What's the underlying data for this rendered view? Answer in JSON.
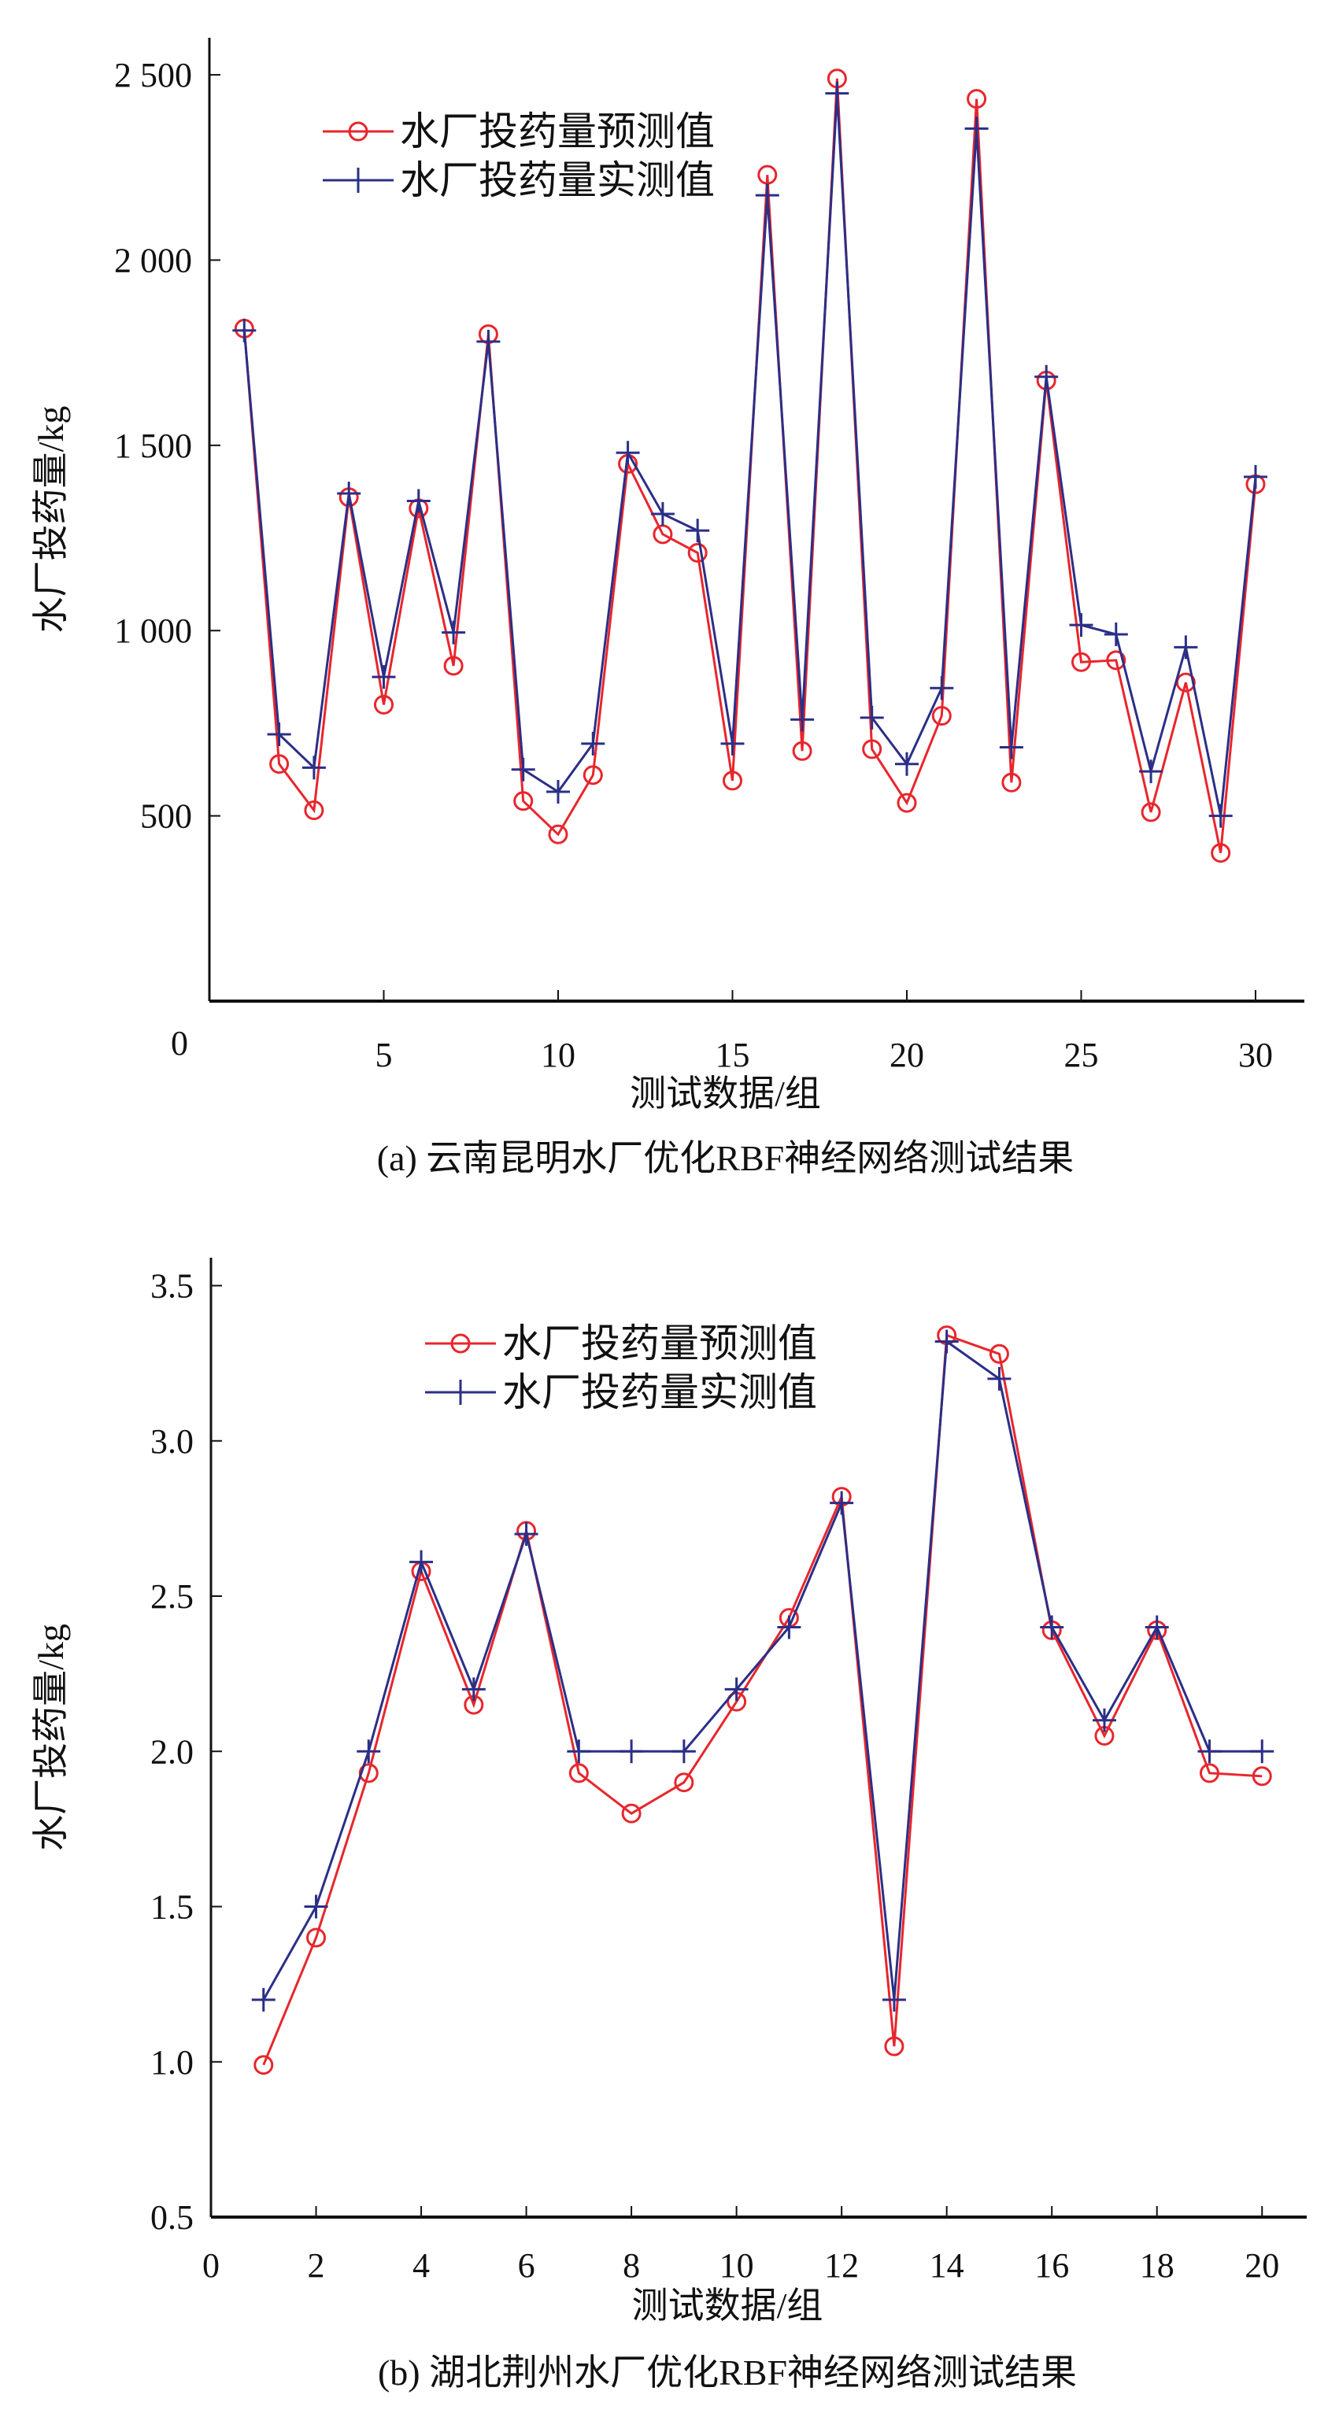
{
  "chart_data": [
    {
      "type": "line",
      "caption": "(a) 云南昆明水厂优化RBF神经网络测试结果",
      "xlabel": "测试数据/组",
      "ylabel": "水厂投药量/kg",
      "xlim": [
        0,
        31.4
      ],
      "ylim": [
        0,
        2600
      ],
      "xticks": [
        5,
        10,
        15,
        20,
        25,
        30
      ],
      "xtick_labels": [
        "5",
        "10",
        "15",
        "20",
        "25",
        "30"
      ],
      "yticks": [
        0,
        500,
        1000,
        1500,
        2000,
        2500
      ],
      "ytick_labels": [
        "0",
        "500",
        "1 000",
        "1 500",
        "2 000",
        "2 500"
      ],
      "x0_label": "0",
      "legend_position": "top-left",
      "x": [
        1,
        2,
        3,
        4,
        5,
        6,
        7,
        8,
        9,
        10,
        11,
        12,
        13,
        14,
        15,
        16,
        17,
        18,
        19,
        20,
        21,
        22,
        23,
        24,
        25,
        26,
        27,
        28,
        29,
        30
      ],
      "series": [
        {
          "name": "水厂投药量预测值",
          "color": "#e8262d",
          "marker": "circle",
          "values": [
            1815,
            640,
            515,
            1360,
            800,
            1330,
            905,
            1800,
            540,
            450,
            610,
            1450,
            1260,
            1210,
            595,
            2230,
            675,
            2490,
            680,
            535,
            770,
            2435,
            590,
            1675,
            915,
            920,
            510,
            860,
            400,
            1395
          ]
        },
        {
          "name": "水厂投药量实测值",
          "color": "#2b2f86",
          "marker": "plus",
          "values": [
            1810,
            720,
            630,
            1370,
            875,
            1350,
            995,
            1780,
            625,
            565,
            695,
            1480,
            1315,
            1270,
            695,
            2175,
            760,
            2450,
            765,
            640,
            845,
            2355,
            685,
            1685,
            1015,
            990,
            620,
            955,
            500,
            1415
          ]
        }
      ]
    },
    {
      "type": "line",
      "caption": "(b) 湖北荆州水厂优化RBF神经网络测试结果",
      "xlabel": "测试数据/组",
      "ylabel": "水厂投药量/kg",
      "xlim": [
        0,
        20.85
      ],
      "ylim": [
        0.5,
        3.59
      ],
      "xticks": [
        0,
        2,
        4,
        6,
        8,
        10,
        12,
        14,
        16,
        18,
        20
      ],
      "xtick_labels": [
        "0",
        "2",
        "4",
        "6",
        "8",
        "10",
        "12",
        "14",
        "16",
        "18",
        "20"
      ],
      "yticks": [
        0.5,
        1.0,
        1.5,
        2.0,
        2.5,
        3.0,
        3.5
      ],
      "ytick_labels": [
        "0.5",
        "1.0",
        "1.5",
        "2.0",
        "2.5",
        "3.0",
        "3.5"
      ],
      "legend_position": "top-left",
      "x": [
        1,
        2,
        3,
        4,
        5,
        6,
        7,
        8,
        9,
        10,
        11,
        12,
        13,
        14,
        15,
        16,
        17,
        18,
        19,
        20
      ],
      "series": [
        {
          "name": "水厂投药量预测值",
          "color": "#e8262d",
          "marker": "circle",
          "values": [
            0.99,
            1.4,
            1.93,
            2.58,
            2.15,
            2.71,
            1.93,
            1.8,
            1.9,
            2.16,
            2.43,
            2.82,
            1.05,
            3.34,
            3.28,
            2.39,
            2.05,
            2.39,
            1.93,
            1.92
          ]
        },
        {
          "name": "水厂投药量实测值",
          "color": "#2b2f86",
          "marker": "plus",
          "values": [
            1.2,
            1.5,
            2.0,
            2.61,
            2.2,
            2.7,
            2.0,
            2.0,
            2.0,
            2.2,
            2.4,
            2.8,
            1.2,
            3.32,
            3.2,
            2.4,
            2.1,
            2.4,
            2.0,
            2.0
          ]
        }
      ]
    }
  ]
}
